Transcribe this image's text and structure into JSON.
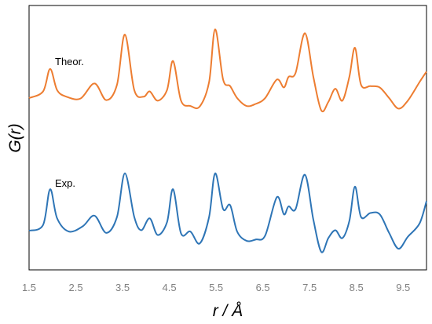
{
  "chart_data": {
    "type": "line",
    "title": "",
    "xlabel": "r / Å",
    "ylabel": "G(r)",
    "xlim": [
      1.5,
      10.0
    ],
    "ylim": [
      0,
      100
    ],
    "x_ticks": [
      "1.5",
      "2.5",
      "3.5",
      "4.5",
      "5.5",
      "6.5",
      "7.5",
      "8.5",
      "9.5"
    ],
    "y_ticks_shown": false,
    "grid": false,
    "series": [
      {
        "name": "Theor.",
        "color": "#ed7d31",
        "points": [
          [
            1.5,
            65.0
          ],
          [
            1.8,
            67.5
          ],
          [
            1.95,
            76.0
          ],
          [
            2.1,
            68.0
          ],
          [
            2.3,
            65.5
          ],
          [
            2.6,
            64.8
          ],
          [
            2.9,
            70.5
          ],
          [
            3.15,
            64.2
          ],
          [
            3.38,
            70.0
          ],
          [
            3.55,
            89.0
          ],
          [
            3.75,
            68.0
          ],
          [
            3.95,
            65.5
          ],
          [
            4.08,
            67.5
          ],
          [
            4.25,
            64.0
          ],
          [
            4.45,
            68.0
          ],
          [
            4.58,
            79.0
          ],
          [
            4.75,
            64.0
          ],
          [
            4.95,
            62.0
          ],
          [
            5.15,
            61.8
          ],
          [
            5.35,
            71.0
          ],
          [
            5.48,
            91.0
          ],
          [
            5.65,
            72.0
          ],
          [
            5.8,
            69.5
          ],
          [
            5.95,
            65.0
          ],
          [
            6.15,
            62.0
          ],
          [
            6.35,
            62.8
          ],
          [
            6.55,
            65.0
          ],
          [
            6.8,
            72.0
          ],
          [
            6.95,
            69.0
          ],
          [
            7.05,
            73.0
          ],
          [
            7.2,
            74.5
          ],
          [
            7.4,
            89.5
          ],
          [
            7.58,
            73.0
          ],
          [
            7.75,
            60.3
          ],
          [
            7.9,
            63.5
          ],
          [
            8.05,
            68.5
          ],
          [
            8.2,
            64.0
          ],
          [
            8.35,
            73.0
          ],
          [
            8.47,
            84.0
          ],
          [
            8.6,
            70.0
          ],
          [
            8.8,
            69.5
          ],
          [
            9.0,
            69.0
          ],
          [
            9.2,
            65.0
          ],
          [
            9.4,
            61.0
          ],
          [
            9.6,
            64.0
          ],
          [
            9.85,
            71.0
          ],
          [
            10.0,
            75.0
          ]
        ]
      },
      {
        "name": "Exp.",
        "color": "#2e75b6",
        "points": [
          [
            1.5,
            14.8
          ],
          [
            1.8,
            17.0
          ],
          [
            1.95,
            30.5
          ],
          [
            2.1,
            19.5
          ],
          [
            2.35,
            14.5
          ],
          [
            2.65,
            16.5
          ],
          [
            2.9,
            20.5
          ],
          [
            3.15,
            14.0
          ],
          [
            3.38,
            20.0
          ],
          [
            3.55,
            36.5
          ],
          [
            3.75,
            20.0
          ],
          [
            3.9,
            15.0
          ],
          [
            4.08,
            19.5
          ],
          [
            4.25,
            13.2
          ],
          [
            4.45,
            18.0
          ],
          [
            4.58,
            30.5
          ],
          [
            4.75,
            13.8
          ],
          [
            4.95,
            14.5
          ],
          [
            5.15,
            10.0
          ],
          [
            5.35,
            20.0
          ],
          [
            5.48,
            36.5
          ],
          [
            5.65,
            23.0
          ],
          [
            5.8,
            24.5
          ],
          [
            5.95,
            14.5
          ],
          [
            6.15,
            11.0
          ],
          [
            6.35,
            11.5
          ],
          [
            6.55,
            13.0
          ],
          [
            6.8,
            27.5
          ],
          [
            6.95,
            21.0
          ],
          [
            7.05,
            24.0
          ],
          [
            7.2,
            23.0
          ],
          [
            7.4,
            36.0
          ],
          [
            7.58,
            19.0
          ],
          [
            7.75,
            6.8
          ],
          [
            7.9,
            12.0
          ],
          [
            8.05,
            15.0
          ],
          [
            8.2,
            12.0
          ],
          [
            8.35,
            18.5
          ],
          [
            8.47,
            31.5
          ],
          [
            8.6,
            20.0
          ],
          [
            8.8,
            21.5
          ],
          [
            9.0,
            21.0
          ],
          [
            9.2,
            14.0
          ],
          [
            9.4,
            8.0
          ],
          [
            9.6,
            12.5
          ],
          [
            9.85,
            17.5
          ],
          [
            10.0,
            26.0
          ]
        ]
      }
    ]
  }
}
